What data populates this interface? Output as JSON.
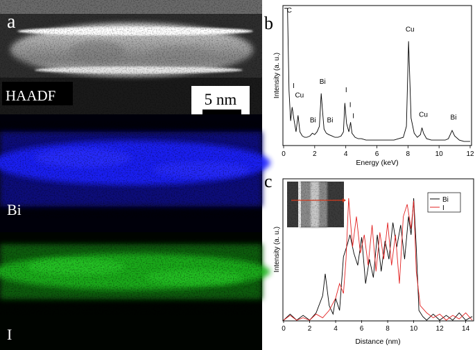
{
  "panels": {
    "a": {
      "letter": "a",
      "rows": [
        {
          "label": "HAADF",
          "color": "#e8e8e8"
        },
        {
          "label": "Bi",
          "color": "#1f24ff"
        },
        {
          "label": "I",
          "color": "#1db31d"
        }
      ],
      "scale_bar_label": "5 nm"
    },
    "b": {
      "letter": "b"
    },
    "c": {
      "letter": "c"
    }
  },
  "chart_data": [
    {
      "panel": "b",
      "type": "line",
      "title": "",
      "xlabel": "Energy (keV)",
      "ylabel": "Intensity (a. u.)",
      "xlim": [
        0,
        12
      ],
      "xticks": [
        0,
        2,
        4,
        6,
        8,
        10,
        12
      ],
      "grid": false,
      "series": [
        {
          "color": "#000000",
          "x": [
            0.05,
            0.15,
            0.25,
            0.35,
            0.45,
            0.55,
            0.65,
            0.8,
            0.93,
            1.05,
            1.2,
            1.35,
            1.5,
            1.7,
            1.85,
            2.0,
            2.15,
            2.3,
            2.42,
            2.5,
            2.6,
            2.75,
            2.9,
            3.1,
            3.3,
            3.5,
            3.7,
            3.85,
            3.94,
            4.05,
            4.2,
            4.31,
            4.4,
            4.6,
            4.8,
            5.0,
            5.3,
            5.6,
            5.9,
            6.2,
            6.5,
            6.8,
            7.1,
            7.4,
            7.7,
            7.9,
            8.04,
            8.2,
            8.4,
            8.6,
            8.8,
            8.9,
            9.0,
            9.2,
            9.5,
            9.8,
            10.1,
            10.4,
            10.6,
            10.84,
            11.0,
            11.3,
            11.6,
            12.0
          ],
          "y": [
            100,
            100,
            100,
            40,
            18,
            28,
            20,
            10,
            22,
            10,
            7,
            6,
            6,
            7,
            9,
            8,
            10,
            14,
            38,
            26,
            12,
            9,
            8,
            7,
            6,
            6,
            7,
            10,
            31,
            16,
            10,
            17,
            9,
            6,
            5,
            5,
            4,
            4,
            4,
            4,
            4,
            4,
            4,
            5,
            6,
            14,
            76,
            20,
            9,
            6,
            8,
            13,
            9,
            5,
            4,
            4,
            4,
            4,
            5,
            11,
            7,
            4,
            3,
            3
          ]
        }
      ],
      "annotations": [
        {
          "text": "C",
          "x": 0.28,
          "y": 96
        },
        {
          "text": "I",
          "x": 0.55,
          "y": 41
        },
        {
          "text": "Cu",
          "x": 0.93,
          "y": 34
        },
        {
          "text": "Bi",
          "x": 1.8,
          "y": 16
        },
        {
          "text": "Bi",
          "x": 2.42,
          "y": 44
        },
        {
          "text": "Bi",
          "x": 2.9,
          "y": 16
        },
        {
          "text": "I",
          "x": 3.94,
          "y": 38
        },
        {
          "text": "I",
          "x": 4.2,
          "y": 27
        },
        {
          "text": "I",
          "x": 4.4,
          "y": 19
        },
        {
          "text": "Cu",
          "x": 8.04,
          "y": 82
        },
        {
          "text": "Cu",
          "x": 8.9,
          "y": 20
        },
        {
          "text": "Bi",
          "x": 10.84,
          "y": 18
        }
      ]
    },
    {
      "panel": "c",
      "type": "line",
      "title": "",
      "xlabel": "Distance (nm)",
      "ylabel": "Intensity (a. u.)",
      "xlim": [
        0,
        14.5
      ],
      "xticks": [
        0,
        2,
        4,
        6,
        8,
        10,
        12,
        14
      ],
      "grid": false,
      "legend_position": "top-right",
      "series": [
        {
          "name": "Bi",
          "color": "#000000",
          "x": [
            0,
            0.5,
            1.0,
            1.5,
            2.0,
            2.5,
            3.0,
            3.2,
            3.5,
            3.8,
            4.0,
            4.3,
            4.6,
            4.9,
            5.1,
            5.4,
            5.7,
            6.0,
            6.3,
            6.6,
            6.9,
            7.2,
            7.5,
            7.8,
            8.1,
            8.4,
            8.7,
            9.0,
            9.3,
            9.6,
            9.8,
            10.0,
            10.2,
            10.4,
            10.7,
            11.0,
            11.5,
            12.0,
            12.5,
            13.0,
            13.5,
            14.0,
            14.5
          ],
          "y": [
            0,
            5,
            0,
            4,
            0,
            6,
            20,
            38,
            12,
            5,
            18,
            8,
            52,
            62,
            70,
            55,
            45,
            68,
            30,
            50,
            35,
            70,
            40,
            65,
            50,
            80,
            60,
            78,
            50,
            85,
            70,
            100,
            60,
            8,
            3,
            0,
            5,
            0,
            4,
            0,
            6,
            0,
            3
          ]
        },
        {
          "name": "I",
          "color": "#e22222",
          "x": [
            0,
            0.5,
            1.0,
            1.5,
            2.0,
            2.5,
            3.0,
            3.5,
            4.0,
            4.3,
            4.6,
            4.8,
            5.0,
            5.3,
            5.6,
            5.9,
            6.2,
            6.5,
            6.8,
            7.1,
            7.4,
            7.7,
            8.0,
            8.3,
            8.6,
            8.9,
            9.2,
            9.5,
            9.8,
            10.0,
            10.2,
            10.5,
            11.0,
            11.5,
            12.0,
            12.5,
            13.0,
            13.5,
            14.0,
            14.5
          ],
          "y": [
            0,
            4,
            0,
            2,
            0,
            5,
            2,
            8,
            18,
            30,
            22,
            50,
            100,
            60,
            85,
            55,
            70,
            45,
            78,
            40,
            72,
            50,
            80,
            45,
            70,
            30,
            85,
            95,
            75,
            98,
            40,
            12,
            6,
            2,
            5,
            0,
            4,
            1,
            6,
            0
          ]
        }
      ],
      "legend": [
        "Bi",
        "I"
      ]
    }
  ]
}
